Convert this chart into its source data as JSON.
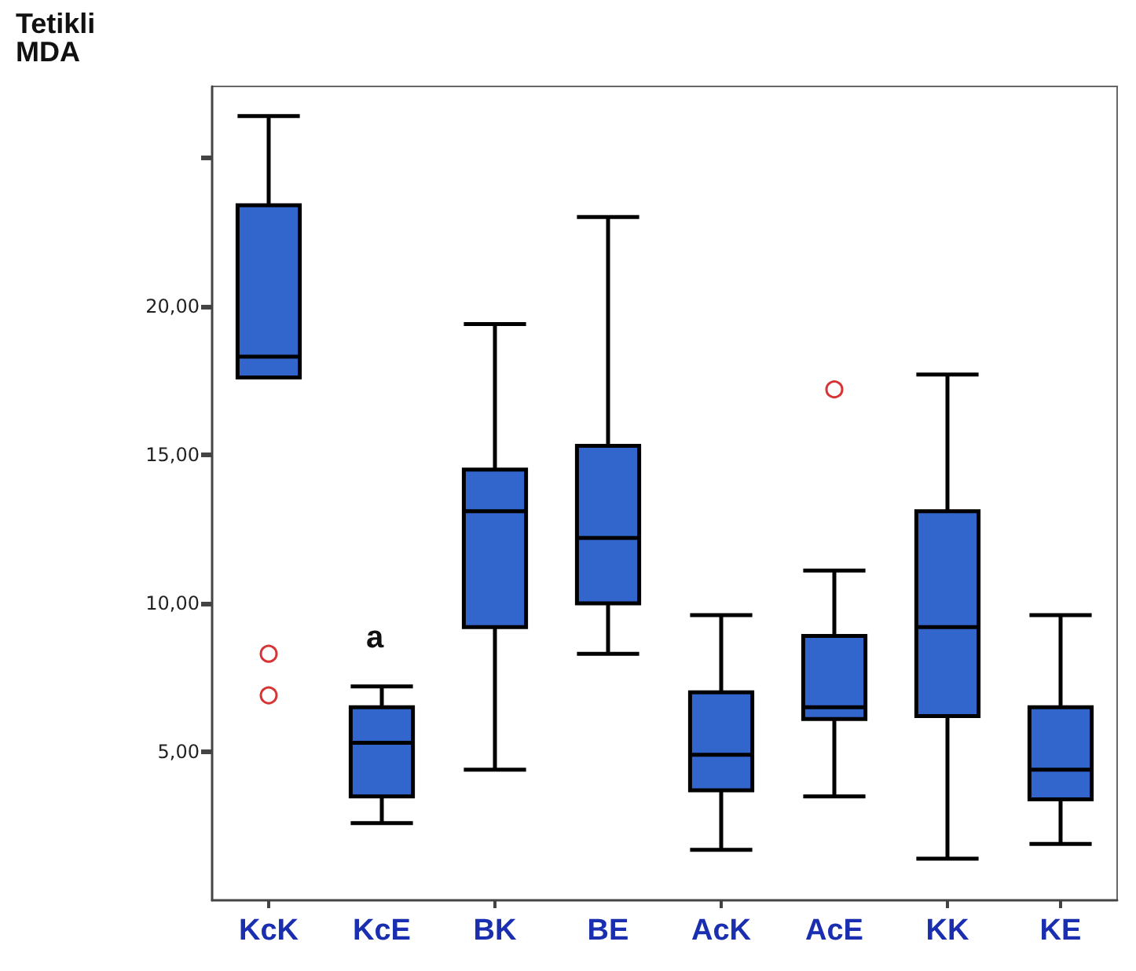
{
  "chart_data": {
    "type": "box",
    "ylabel": "Tetikli MDA",
    "categories": [
      "KcK",
      "KcE",
      "BK",
      "BE",
      "AcK",
      "AcE",
      "KK",
      "KE"
    ],
    "ylim": [
      0,
      27.4
    ],
    "yticks": [
      {
        "value": 5,
        "label": "5,00"
      },
      {
        "value": 10,
        "label": "10,00"
      },
      {
        "value": 15,
        "label": "15,00"
      },
      {
        "value": 20,
        "label": "20,00"
      },
      {
        "value": 25,
        "label": null
      }
    ],
    "grid": false,
    "series": [
      {
        "color": "#3366cc",
        "boxes": [
          {
            "low": 17.6,
            "q1": 17.6,
            "median": 18.3,
            "q3": 23.4,
            "high": 26.4,
            "outliers": [
              8.3,
              6.9
            ]
          },
          {
            "low": 2.6,
            "q1": 3.5,
            "median": 5.3,
            "q3": 6.5,
            "high": 7.2
          },
          {
            "low": 4.4,
            "q1": 9.2,
            "median": 13.1,
            "q3": 14.5,
            "high": 19.4
          },
          {
            "low": 8.3,
            "q1": 10.0,
            "median": 12.2,
            "q3": 15.3,
            "high": 23.0
          },
          {
            "low": 1.7,
            "q1": 3.7,
            "median": 4.9,
            "q3": 7.0,
            "high": 9.6
          },
          {
            "low": 3.5,
            "q1": 6.1,
            "median": 6.5,
            "q3": 8.9,
            "high": 11.1,
            "outliers": [
              17.2
            ]
          },
          {
            "low": 1.4,
            "q1": 6.2,
            "median": 9.2,
            "q3": 13.1,
            "high": 17.7
          },
          {
            "low": 1.9,
            "q1": 3.4,
            "median": 4.4,
            "q3": 6.5,
            "high": 9.6
          }
        ]
      }
    ],
    "annotations": [
      "a"
    ]
  }
}
